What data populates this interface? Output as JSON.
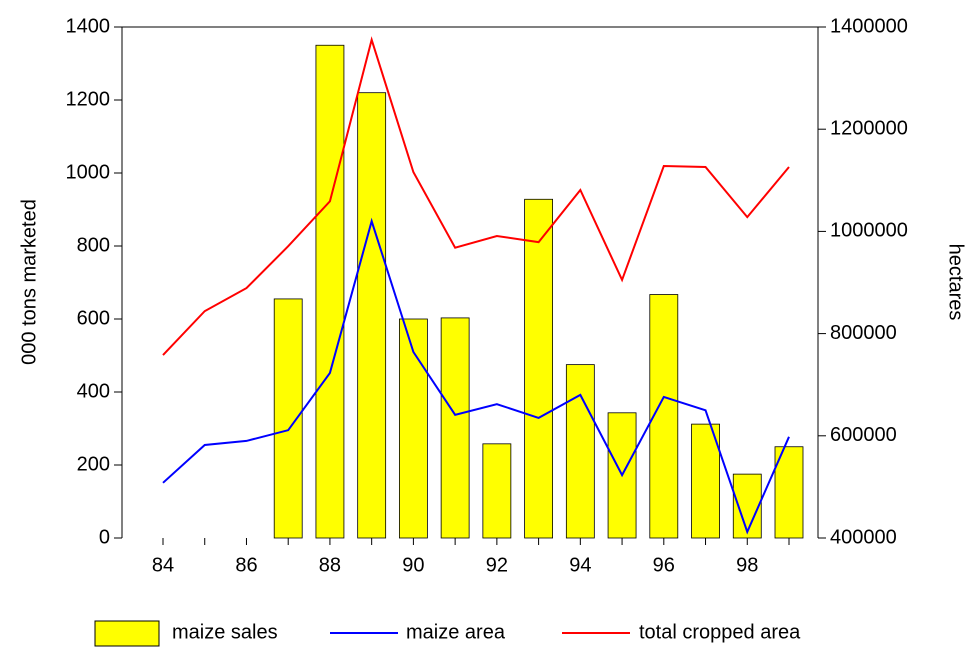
{
  "chart_data": {
    "type": "bar-line",
    "categories": [
      "84",
      null,
      "86",
      null,
      "88",
      null,
      "90",
      null,
      "92",
      null,
      "94",
      null,
      "96",
      null,
      "98",
      null
    ],
    "ylabel": "000 tons marketed",
    "y2label": "hectares",
    "ylim": [
      0,
      1400
    ],
    "yticks": [
      0,
      200,
      400,
      600,
      800,
      1000,
      1200,
      1400
    ],
    "y2lim": [
      400000,
      1400000
    ],
    "y2ticks": [
      400000,
      600000,
      800000,
      1000000,
      1200000,
      1400000
    ],
    "legend": "bottom",
    "series": [
      {
        "name": "maize sales",
        "type": "bar",
        "color": "#ffff00",
        "values": [
          null,
          null,
          null,
          655,
          1350,
          1220,
          600,
          603,
          258,
          928,
          475,
          343,
          667,
          312,
          175,
          250
        ]
      },
      {
        "name": "maize area",
        "type": "line",
        "axis": "y2",
        "color": "#0000ff",
        "values": [
          508000,
          582000,
          590000,
          611000,
          723000,
          1020000,
          764000,
          641000,
          662000,
          635000,
          680000,
          523000,
          676000,
          650000,
          412000,
          598000
        ]
      },
      {
        "name": "total cropped area",
        "type": "line",
        "axis": "y2",
        "color": "#ff0000",
        "values": [
          758000,
          844000,
          889000,
          971000,
          1059000,
          1375000,
          1116000,
          968000,
          991000,
          979000,
          1081000,
          905000,
          1128000,
          1126000,
          1028000,
          1126000
        ]
      }
    ]
  }
}
